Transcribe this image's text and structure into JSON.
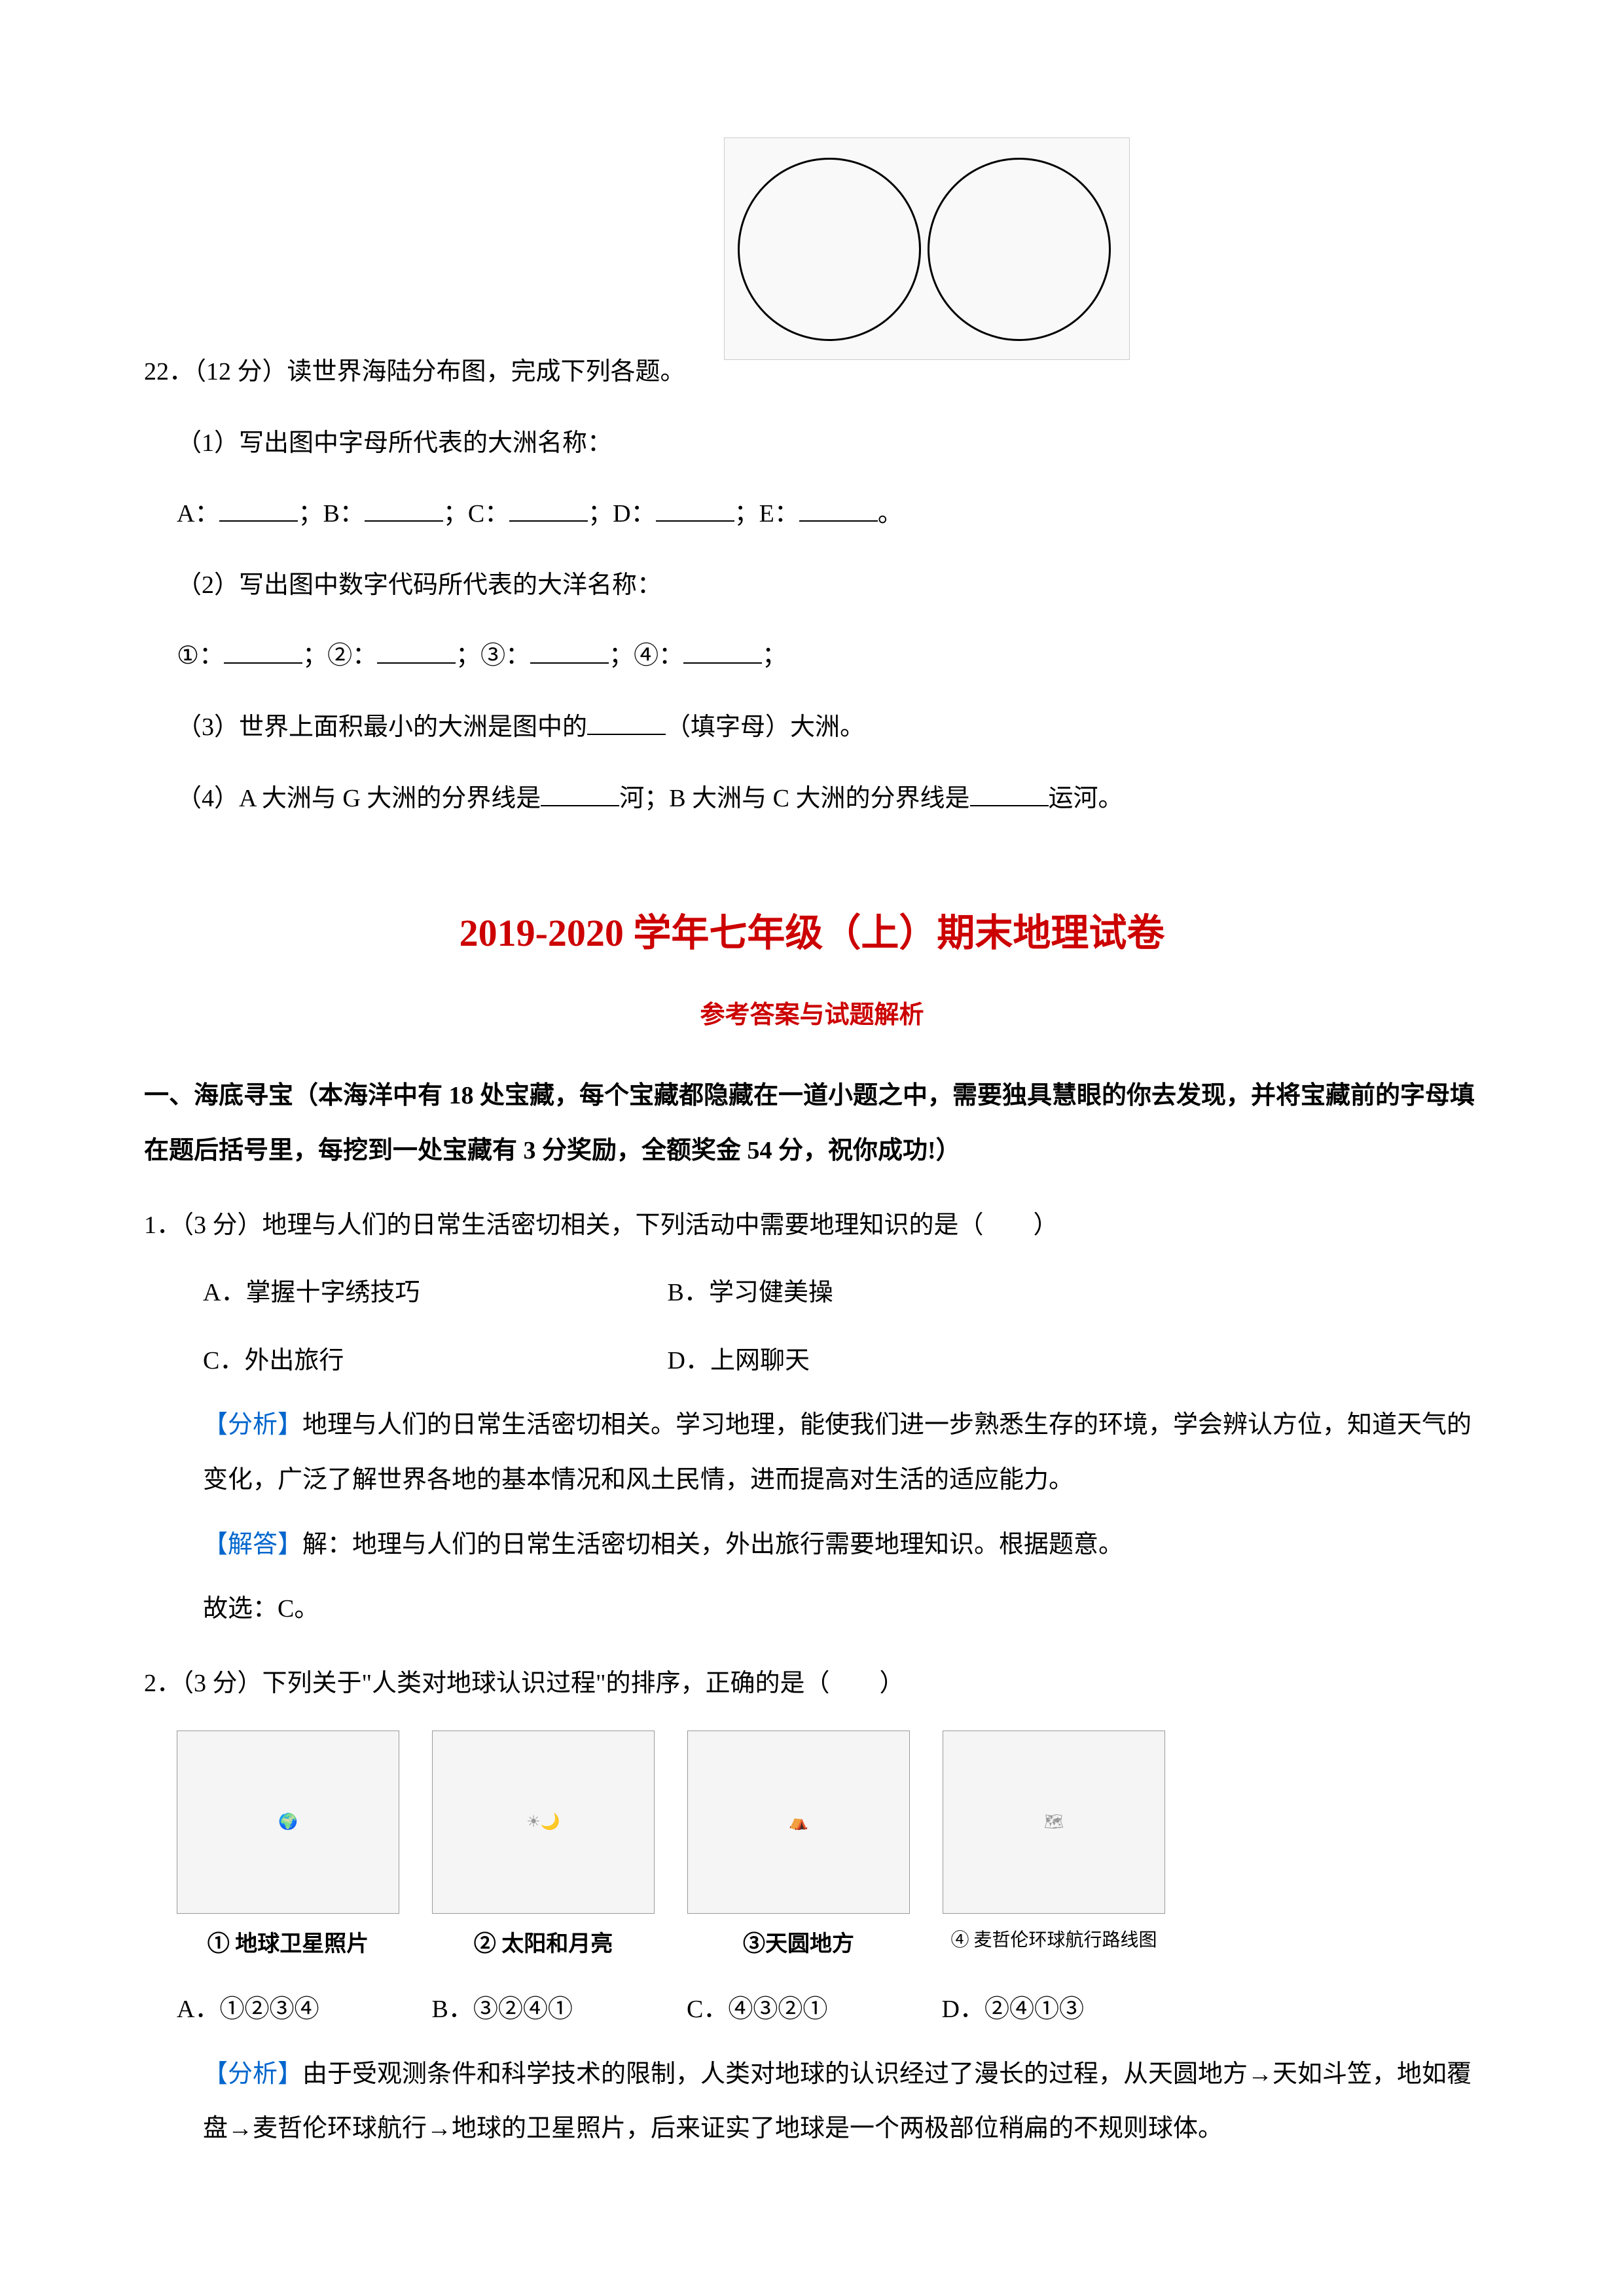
{
  "q22": {
    "number": "22．",
    "points": "（12 分）",
    "stem": "读世界海陆分布图，完成下列各题。",
    "sub1": {
      "label": "（1）写出图中字母所代表的大洲名称：",
      "line": "A：______；B：______；C：______；D：______；E：______。"
    },
    "sub2": {
      "label": "（2）写出图中数字代码所代表的大洋名称：",
      "line": "①：______；②：______；③：______；④：______；"
    },
    "sub3": "（3）世界上面积最小的大洲是图中的______（填字母）大洲。",
    "sub4": "（4）A 大洲与 G 大洲的分界线是______河；B 大洲与 C 大洲的分界线是______运河。"
  },
  "title": {
    "main": "2019-2020 学年七年级（上）期末地理试卷",
    "sub": "参考答案与试题解析"
  },
  "section1": {
    "header": "一、海底寻宝（本海洋中有 18 处宝藏，每个宝藏都隐藏在一道小题之中，需要独具慧眼的你去发现，并将宝藏前的字母填在题后括号里，每挖到一处宝藏有 3 分奖励，全额奖金 54 分，祝你成功!）"
  },
  "q1": {
    "number": "1．",
    "points": "（3 分）",
    "stem": "地理与人们的日常生活密切相关，下列活动中需要地理知识的是（　　）",
    "options": {
      "A": "A．掌握十字绣技巧",
      "B": "B．学习健美操",
      "C": "C．外出旅行",
      "D": "D．上网聊天"
    },
    "analysis_label": "【分析】",
    "analysis": "地理与人们的日常生活密切相关。学习地理，能使我们进一步熟悉生存的环境，学会辨认方位，知道天气的变化，广泛了解世界各地的基本情况和风土民情，进而提高对生活的适应能力。",
    "solution_label": "【解答】",
    "solution": "解：地理与人们的日常生活密切相关，外出旅行需要地理知识。根据题意。",
    "conclusion": "故选：C。"
  },
  "q2": {
    "number": "2．",
    "points": "（3 分）",
    "stem": "下列关于\"人类对地球认识过程\"的排序，正确的是（　　）",
    "captions": {
      "c1": "① 地球卫星照片",
      "c2": "② 太阳和月亮",
      "c3": "③天圆地方",
      "c4": "④ 麦哲伦环球航行路线图"
    },
    "options": {
      "A": "A．①②③④",
      "B": "B．③②④①",
      "C": "C．④③②①",
      "D": "D．②④①③"
    },
    "analysis_label": "【分析】",
    "analysis": "由于受观测条件和科学技术的限制，人类对地球的认识经过了漫长的过程，从天圆地方→天如斗笠，地如覆盘→麦哲伦环球航行→地球的卫星照片，后来证实了地球是一个两极部位稍扁的不规则球体。"
  },
  "colors": {
    "text": "#000000",
    "accent": "#cc0000",
    "link": "#0066cc",
    "background": "#ffffff"
  }
}
